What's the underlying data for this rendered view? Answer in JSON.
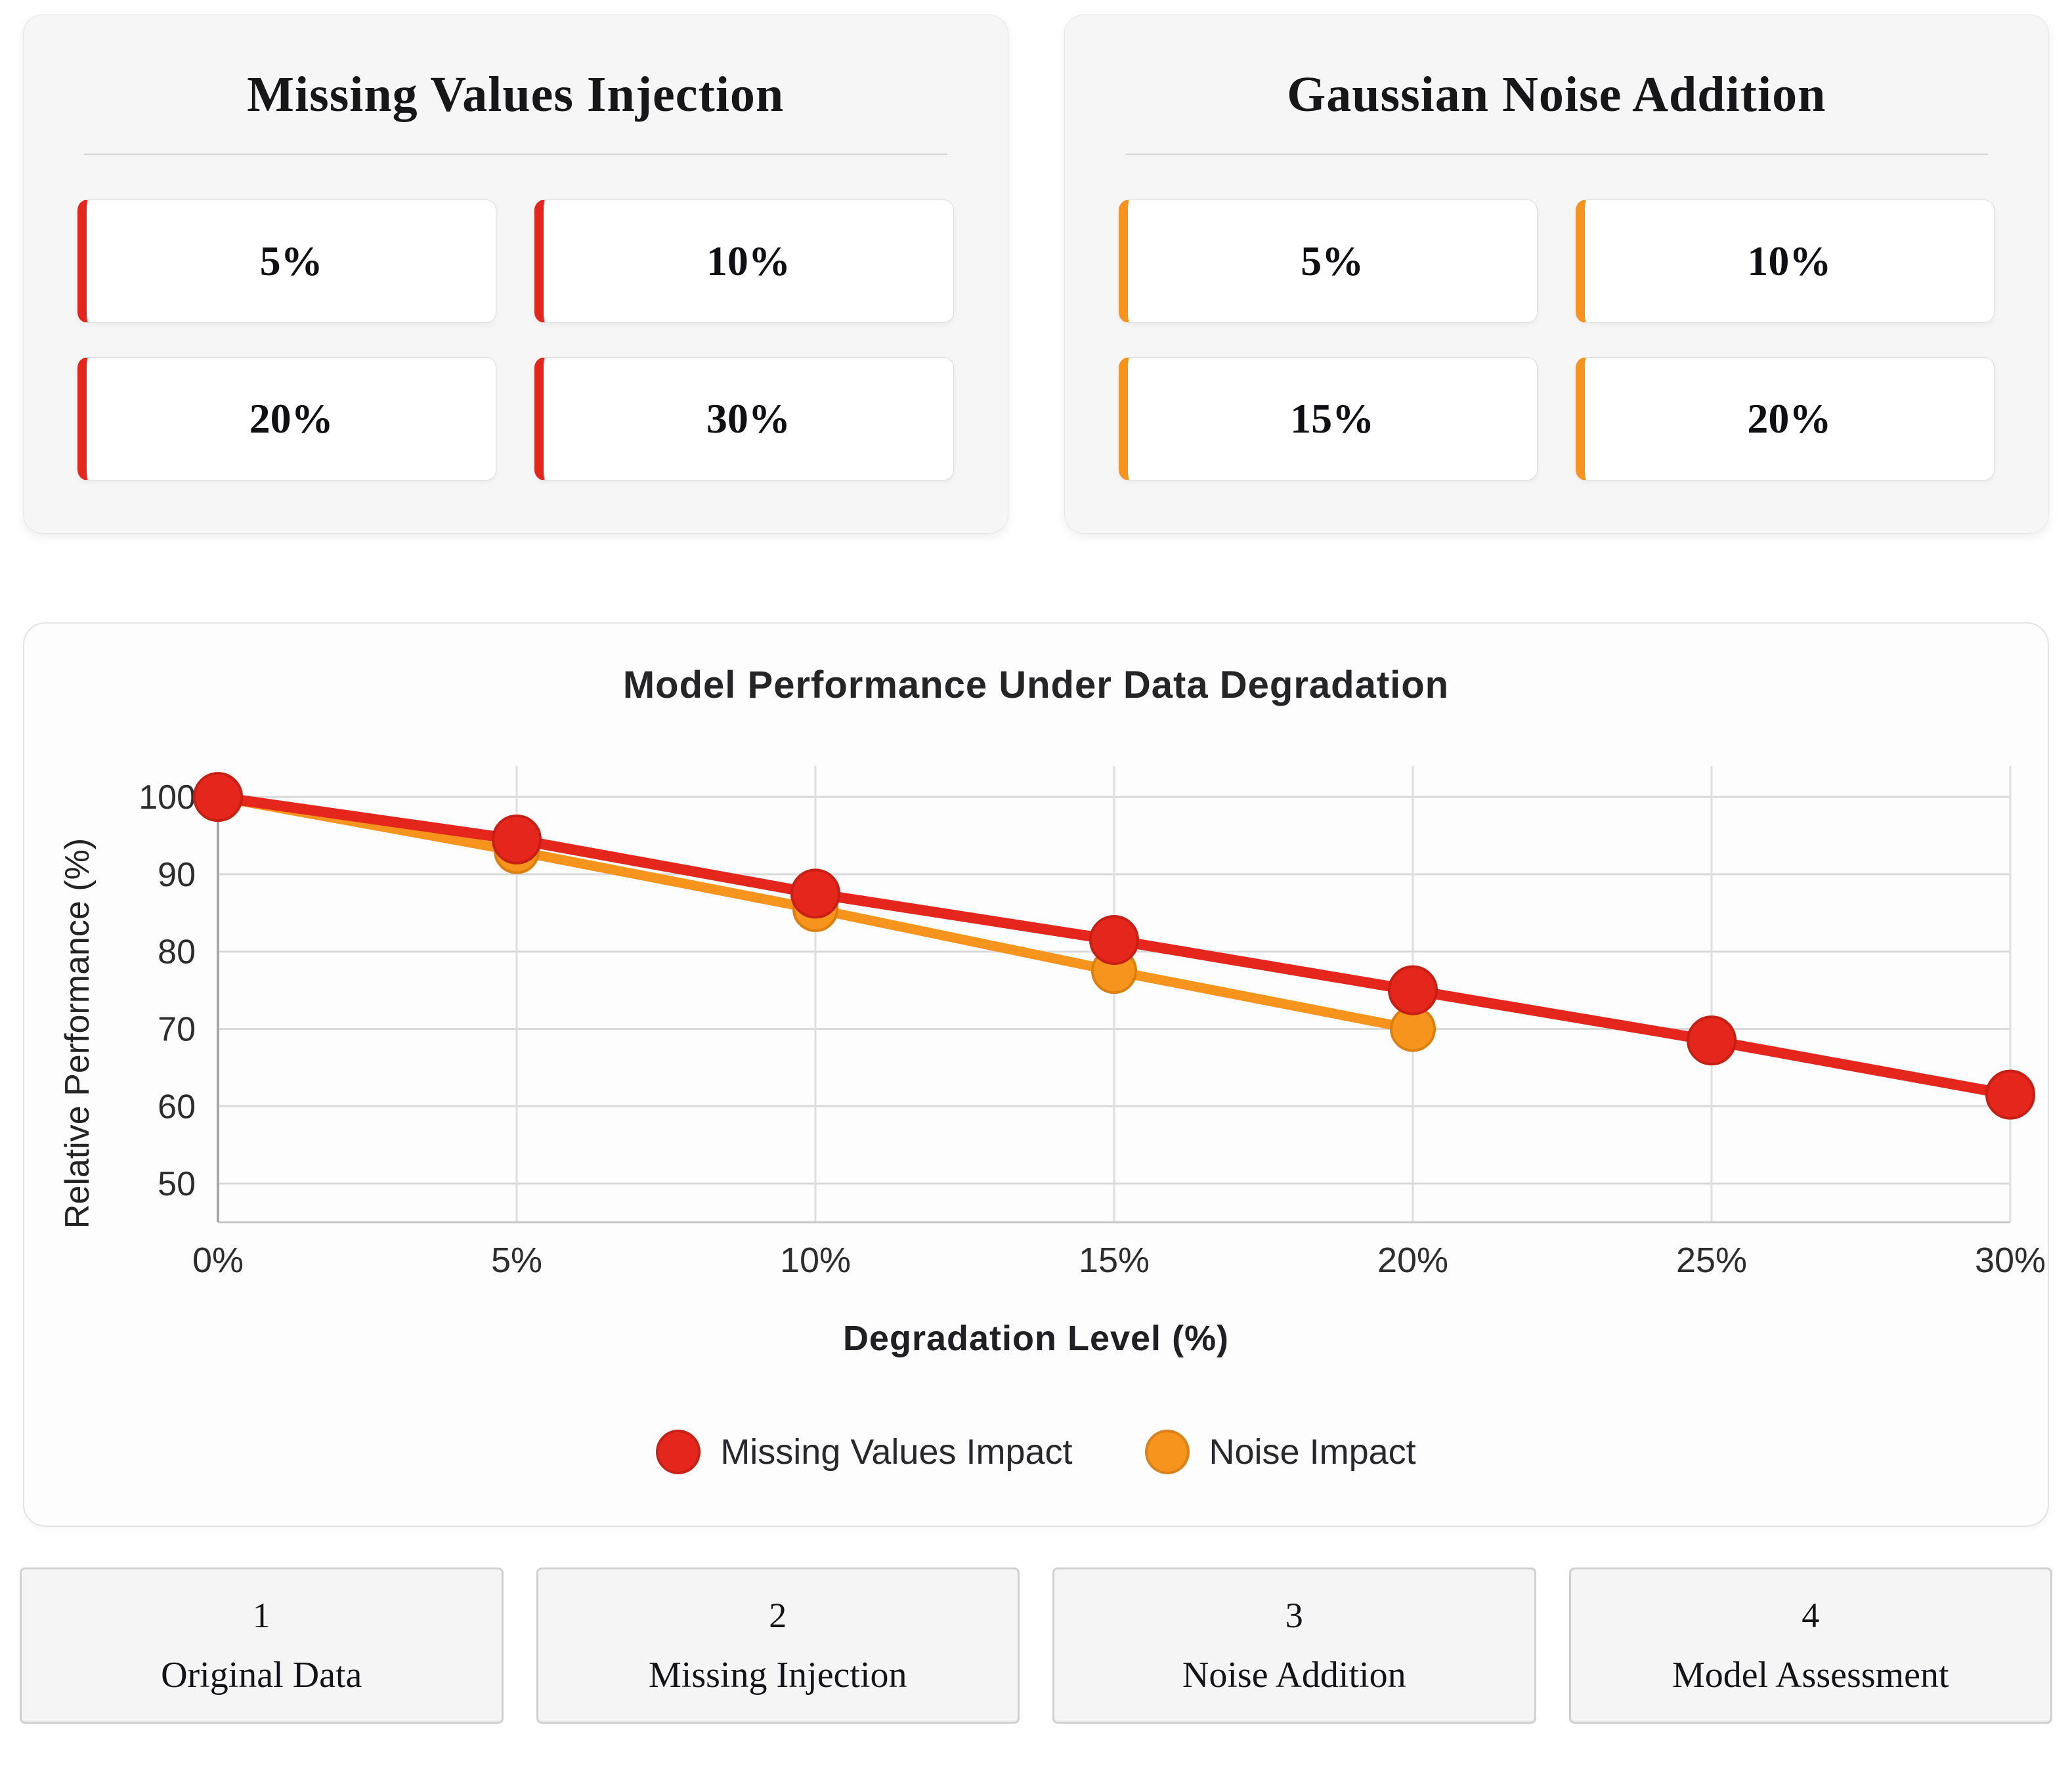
{
  "panels": {
    "missing": {
      "title": "Missing Values Injection",
      "accent_color": "#e5261d",
      "options": [
        "5%",
        "10%",
        "20%",
        "30%"
      ]
    },
    "noise": {
      "title": "Gaussian Noise Addition",
      "accent_color": "#f7941d",
      "options": [
        "5%",
        "10%",
        "15%",
        "20%"
      ]
    }
  },
  "chart_data": {
    "type": "line",
    "title": "Model Performance Under Data Degradation",
    "xlabel": "Degradation Level (%)",
    "ylabel": "Relative Performance (%)",
    "xlim": [
      0,
      30
    ],
    "ylim": [
      45,
      104
    ],
    "x_ticks": [
      0,
      5,
      10,
      15,
      20,
      25,
      30
    ],
    "x_tick_labels": [
      "0%",
      "5%",
      "10%",
      "15%",
      "20%",
      "25%",
      "30%"
    ],
    "y_ticks": [
      50,
      60,
      70,
      80,
      90,
      100
    ],
    "grid": true,
    "legend_position": "bottom-center",
    "series": [
      {
        "name": "Missing Values Impact",
        "color": "#e5261d",
        "marker_edge": "#c81f15",
        "line_width": 16,
        "marker_radius": 36,
        "x": [
          0,
          5,
          10,
          15,
          20,
          25,
          30
        ],
        "values": [
          100,
          94.5,
          87.5,
          81.5,
          75,
          68.5,
          61.5
        ]
      },
      {
        "name": "Noise Impact",
        "color": "#f7941d",
        "marker_edge": "#dd7f0d",
        "line_width": 15,
        "marker_radius": 33,
        "x": [
          0,
          5,
          10,
          15,
          20
        ],
        "values": [
          100,
          93,
          85.5,
          77.5,
          70
        ]
      }
    ]
  },
  "steps": [
    {
      "number": "1",
      "label": "Original Data"
    },
    {
      "number": "2",
      "label": "Missing Injection"
    },
    {
      "number": "3",
      "label": "Noise Addition"
    },
    {
      "number": "4",
      "label": "Model Assessment"
    }
  ]
}
